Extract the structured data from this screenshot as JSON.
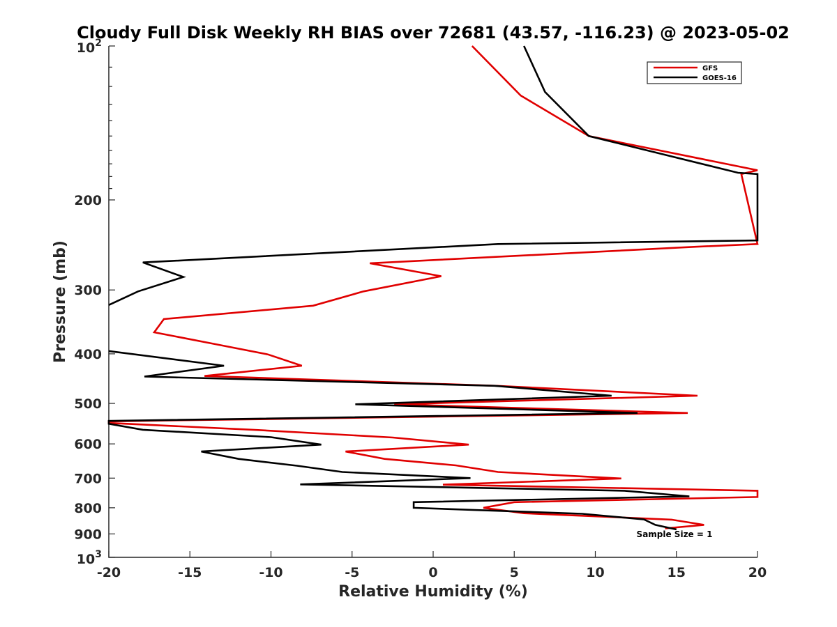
{
  "chart_data": {
    "type": "line",
    "title": "Cloudy Full Disk Weekly RH BIAS over 72681 (43.57, -116.23) @ 2023-05-02",
    "xlabel": "Relative Humidity (%)",
    "ylabel": "Pressure (mb)",
    "xlim": [
      -20,
      20
    ],
    "ylim": [
      100,
      1000
    ],
    "y_scale": "log",
    "y_reversed": true,
    "grid": false,
    "legend_position": "top-right",
    "x_ticks": [
      "-20",
      "-15",
      "-10",
      "-5",
      "0",
      "5",
      "10",
      "15",
      "20"
    ],
    "y_ticks_plain": [
      {
        "value": 200,
        "label": "200"
      },
      {
        "value": 300,
        "label": "300"
      },
      {
        "value": 400,
        "label": "400"
      },
      {
        "value": 500,
        "label": "500"
      },
      {
        "value": 600,
        "label": "600"
      },
      {
        "value": 700,
        "label": "700"
      },
      {
        "value": 800,
        "label": "800"
      },
      {
        "value": 900,
        "label": "900"
      }
    ],
    "y_ticks_pow": [
      {
        "value": 100,
        "base": "10",
        "exp": "2"
      },
      {
        "value": 1000,
        "base": "10",
        "exp": "3"
      }
    ],
    "annotation": "Sample Size = 1",
    "series": [
      {
        "name": "GFS",
        "color": "#e00000",
        "points": [
          [
            2.4,
            100
          ],
          [
            5.4,
            125
          ],
          [
            9.6,
            150
          ],
          [
            20,
            175
          ],
          [
            19,
            178
          ],
          [
            20,
            244
          ],
          [
            16.2,
            247
          ],
          [
            -3.9,
            266
          ],
          [
            0.5,
            282
          ],
          [
            -4.3,
            302
          ],
          [
            -7.4,
            322
          ],
          [
            -16.6,
            342
          ],
          [
            -17.2,
            363
          ],
          [
            -13.4,
            383
          ],
          [
            -10.2,
            401
          ],
          [
            -8.1,
            422
          ],
          [
            -14.1,
            442
          ],
          [
            3.9,
            462
          ],
          [
            16.3,
            483
          ],
          [
            -2.4,
            502
          ],
          [
            15.7,
            522
          ],
          [
            -20,
            542
          ],
          [
            -20,
            546
          ],
          [
            -11.1,
            563
          ],
          [
            -2.5,
            583
          ],
          [
            2.2,
            602
          ],
          [
            -5.4,
            621
          ],
          [
            -3.0,
            642
          ],
          [
            1.4,
            661
          ],
          [
            4.0,
            681
          ],
          [
            11.6,
            701
          ],
          [
            0.6,
            721
          ],
          [
            20,
            741
          ],
          [
            20,
            745
          ],
          [
            20,
            762
          ],
          [
            5.0,
            780
          ],
          [
            3.1,
            800
          ],
          [
            5.6,
            820
          ],
          [
            14.7,
            844
          ],
          [
            16.7,
            864
          ],
          [
            14.3,
            878
          ]
        ]
      },
      {
        "name": "GOES-16",
        "color": "#000000",
        "points": [
          [
            5.6,
            100
          ],
          [
            6.9,
            123
          ],
          [
            9.6,
            150
          ],
          [
            18.8,
            177
          ],
          [
            20,
            178
          ],
          [
            20,
            240
          ],
          [
            4.0,
            244
          ],
          [
            -17.9,
            265
          ],
          [
            -15.4,
            283
          ],
          [
            -18.2,
            302
          ],
          [
            -20,
            321
          ],
          [
            null,
            null
          ],
          [
            -20,
            395
          ],
          [
            -12.9,
            422
          ],
          [
            -17.8,
            443
          ],
          [
            3.8,
            462
          ],
          [
            11.0,
            483
          ],
          [
            -4.8,
            502
          ],
          [
            12.6,
            522
          ],
          [
            -20,
            541
          ],
          [
            -20,
            548
          ],
          [
            -17.9,
            563
          ],
          [
            -10.0,
            582
          ],
          [
            -6.9,
            602
          ],
          [
            -14.3,
            621
          ],
          [
            -12.0,
            642
          ],
          [
            -8.4,
            662
          ],
          [
            -5.6,
            681
          ],
          [
            2.3,
            700
          ],
          [
            -8.2,
            720
          ],
          [
            11.8,
            741
          ],
          [
            15.8,
            760
          ],
          [
            -1.2,
            780
          ],
          [
            -1.2,
            800
          ],
          [
            9.2,
            822
          ],
          [
            13.0,
            843
          ],
          [
            13.7,
            864
          ],
          [
            15.0,
            882
          ]
        ]
      }
    ]
  }
}
